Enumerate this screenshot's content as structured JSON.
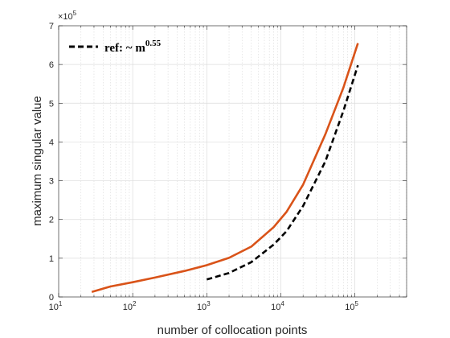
{
  "chart_data": {
    "type": "line",
    "xlabel": "number of collocation points",
    "ylabel": "maximum singular value",
    "x_scale": "log",
    "xlim": [
      10,
      500000
    ],
    "ylim": [
      0,
      700000
    ],
    "y_multiplier_label": "×10",
    "y_multiplier_exp": "5",
    "x_ticks": [
      {
        "base": "10",
        "exp": "1",
        "value": 10
      },
      {
        "base": "10",
        "exp": "2",
        "value": 100
      },
      {
        "base": "10",
        "exp": "3",
        "value": 1000
      },
      {
        "base": "10",
        "exp": "4",
        "value": 10000
      },
      {
        "base": "10",
        "exp": "5",
        "value": 100000
      }
    ],
    "y_ticks": [
      {
        "label": "0",
        "value": 0
      },
      {
        "label": "1",
        "value": 100000
      },
      {
        "label": "2",
        "value": 200000
      },
      {
        "label": "3",
        "value": 300000
      },
      {
        "label": "4",
        "value": 400000
      },
      {
        "label": "5",
        "value": 500000
      },
      {
        "label": "6",
        "value": 600000
      },
      {
        "label": "7",
        "value": 700000
      }
    ],
    "grid": true,
    "minor_grid_x": true,
    "legend_position": "top-left",
    "series": [
      {
        "color": "#D95319",
        "style": "solid",
        "x": [
          28,
          50,
          100,
          200,
          500,
          1000,
          2000,
          4000,
          8000,
          12000,
          20000,
          40000,
          70000,
          110000
        ],
        "y": [
          13000,
          27000,
          38000,
          50000,
          67000,
          82000,
          101000,
          130000,
          180000,
          220000,
          290000,
          420000,
          540000,
          655000
        ]
      },
      {
        "name": "ref: ~ m",
        "name_exp": "0.55",
        "color": "#000000",
        "style": "dashed",
        "x": [
          1000,
          2000,
          4000,
          8000,
          12000,
          20000,
          40000,
          70000,
          110000
        ],
        "y": [
          45000,
          62000,
          90000,
          135000,
          170000,
          235000,
          350000,
          480000,
          598000
        ]
      }
    ]
  }
}
